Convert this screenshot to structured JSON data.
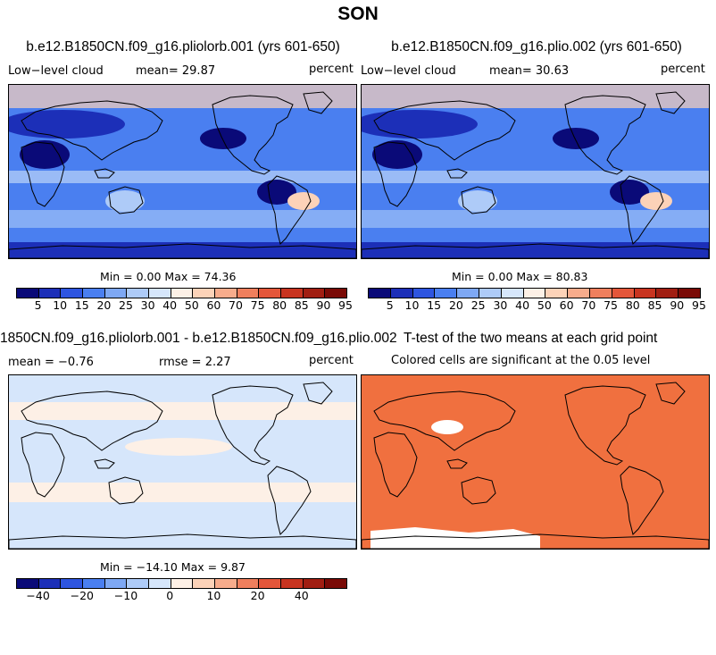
{
  "figure": {
    "title": "SON"
  },
  "panels": [
    {
      "id": "pliolorb",
      "title": "b.e12.B1850CN.f09_g16.pliolorb.001 (yrs 601-650)",
      "left_label": "Low−level cloud",
      "center_label": "mean=  29.87",
      "right_label": "percent",
      "stats": "Min =   0.00 Max =  74.36"
    },
    {
      "id": "plio",
      "title": "b.e12.B1850CN.f09_g16.plio.002 (yrs 601-650)",
      "left_label": "Low−level cloud",
      "center_label": "mean=  30.63",
      "right_label": "percent",
      "stats": "Min =   0.00 Max =  80.83"
    },
    {
      "id": "difference",
      "title": "1850CN.f09_g16.pliolorb.001 - b.e12.B1850CN.f09_g16.plio.002",
      "left_label": "mean =  −0.76",
      "center_label": "rmse =   2.27",
      "right_label": "percent",
      "stats": "Min = −14.10 Max =   9.87"
    },
    {
      "id": "ttest",
      "title": "T-test of the two means at each grid point",
      "left_label": "",
      "center_label": "Colored cells are significant at the 0.05 level",
      "right_label": "",
      "stats": ""
    }
  ],
  "colorbars": {
    "cloud": {
      "colors": [
        "#0a0a78",
        "#1c2fb8",
        "#2e55e0",
        "#4a7ff0",
        "#7ea8f4",
        "#aecbf8",
        "#d6e6fb",
        "#fdf0e6",
        "#fcd2b8",
        "#f7ac8c",
        "#ef7f5d",
        "#e3563a",
        "#c83420",
        "#a11e12",
        "#7a0a06"
      ],
      "tick_labels": [
        "5",
        "10",
        "15",
        "20",
        "25",
        "30",
        "40",
        "50",
        "60",
        "70",
        "75",
        "80",
        "85",
        "90",
        "95"
      ]
    },
    "diff": {
      "colors": [
        "#0a0a78",
        "#1c2fb8",
        "#2e55e0",
        "#4a7ff0",
        "#7ea8f4",
        "#aecbf8",
        "#d6e6fb",
        "#fdf0e6",
        "#fcd2b8",
        "#f7ac8c",
        "#ef7f5d",
        "#e3563a",
        "#c83420",
        "#a11e12",
        "#7a0a06"
      ],
      "tick_labels": [
        "−40",
        "−20",
        "−10",
        "0",
        "10",
        "20",
        "40"
      ]
    }
  },
  "map_colors": {
    "ocean_mid": "#4a7ff0",
    "land_dark": "#1c2fb8",
    "stratocumulus": "#0a0a78",
    "desert_light": "#aecbf8",
    "arctic_warm": "#fcd2b8",
    "diff_base": "#d6e6fb",
    "diff_warm": "#fdf0e6",
    "significant": "#f0703f",
    "not_significant": "#ffffff"
  }
}
